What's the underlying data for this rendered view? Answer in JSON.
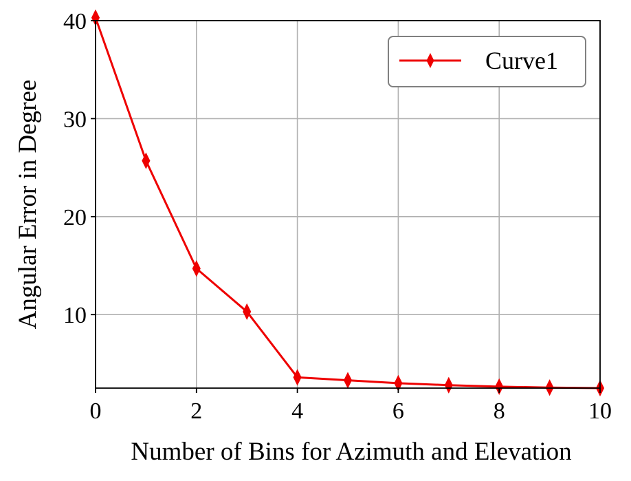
{
  "chart_data": {
    "type": "line",
    "title": "",
    "xlabel": "Number of Bins for Azimuth and Elevation",
    "ylabel": "Angular Error in Degree",
    "xlim": [
      0,
      10
    ],
    "ylim": [
      2.5,
      40
    ],
    "xticks": [
      0,
      2,
      4,
      6,
      8,
      10
    ],
    "yticks": [
      10,
      20,
      30,
      40
    ],
    "grid": true,
    "legend_position": "top-right",
    "series": [
      {
        "name": "Curve1",
        "color": "#ee0000",
        "marker": "thin-diamond",
        "x": [
          0,
          1,
          2,
          3,
          4,
          5,
          6,
          7,
          8,
          9,
          10
        ],
        "y": [
          40.3,
          25.7,
          14.7,
          10.3,
          3.6,
          3.3,
          3.0,
          2.8,
          2.65,
          2.55,
          2.5
        ]
      }
    ]
  }
}
